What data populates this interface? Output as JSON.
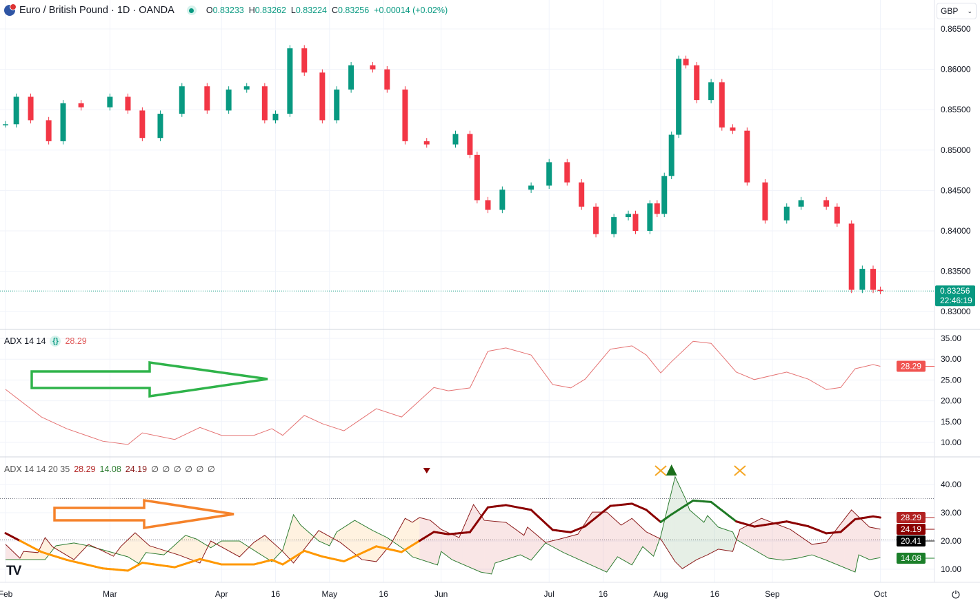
{
  "header": {
    "symbol_title": "Euro / British Pound · 1D · OANDA",
    "open_label": "O",
    "open": "0.83233",
    "high_label": "H",
    "high": "0.83262",
    "low_label": "L",
    "low": "0.83224",
    "close_label": "C",
    "close": "0.83256",
    "change": "+0.00014 (+0.02%)"
  },
  "currency_selector": "GBP",
  "colors": {
    "up": "#089981",
    "down": "#f23645",
    "adx_line": "#e57373",
    "di_plus": "#2e7d32",
    "di_minus": "#8b1a1a",
    "adx_weak": "#ff9800",
    "annotation_green": "#2fb34a",
    "annotation_orange": "#f5822a"
  },
  "x_axis": {
    "ticks": [
      {
        "date": "02-01",
        "label": "Feb"
      },
      {
        "date": "03-01",
        "label": "Mar"
      },
      {
        "date": "04-01",
        "label": "Apr"
      },
      {
        "date": "04-16",
        "label": "16"
      },
      {
        "date": "05-01",
        "label": "May"
      },
      {
        "date": "05-16",
        "label": "16"
      },
      {
        "date": "06-01",
        "label": "Jun"
      },
      {
        "date": "07-01",
        "label": "Jul"
      },
      {
        "date": "07-16",
        "label": "16"
      },
      {
        "date": "08-01",
        "label": "Aug"
      },
      {
        "date": "08-16",
        "label": "16"
      },
      {
        "date": "09-01",
        "label": "Sep"
      },
      {
        "date": "10-01",
        "label": "Oct"
      }
    ]
  },
  "chart_data": [
    {
      "type": "candlestick",
      "pane": "price",
      "y_ticks": [
        "0.86500",
        "0.86000",
        "0.85500",
        "0.85000",
        "0.84500",
        "0.84000",
        "0.83500",
        "0.83000"
      ],
      "ylim": [
        0.83,
        0.865
      ],
      "last_price_label": "0.83256",
      "countdown_label": "22:46:19",
      "last_price": 0.83256,
      "dates": [
        "02-01",
        "02-04",
        "02-08",
        "02-13",
        "02-17",
        "02-22",
        "03-01",
        "03-06",
        "03-10",
        "03-15",
        "03-21",
        "03-28",
        "04-03",
        "04-08",
        "04-13",
        "04-16",
        "04-20",
        "04-24",
        "04-29",
        "05-03",
        "05-07",
        "05-13",
        "05-17",
        "05-22",
        "05-28",
        "06-05",
        "06-09",
        "06-11",
        "06-14",
        "06-18",
        "06-26",
        "07-01",
        "07-06",
        "07-10",
        "07-14",
        "07-19",
        "07-23",
        "07-25",
        "07-29",
        "07-31",
        "08-02",
        "08-04",
        "08-06",
        "08-08",
        "08-11",
        "08-15",
        "08-18",
        "08-21",
        "08-25",
        "08-30",
        "09-05",
        "09-09",
        "09-16",
        "09-19",
        "09-23",
        "09-26",
        "09-29",
        "10-01"
      ],
      "close": [
        0.8532,
        0.8566,
        0.8537,
        0.8511,
        0.8558,
        0.8553,
        0.8566,
        0.8549,
        0.8515,
        0.8545,
        0.8579,
        0.8549,
        0.8575,
        0.8579,
        0.8537,
        0.8545,
        0.8626,
        0.8596,
        0.8537,
        0.8575,
        0.8605,
        0.86,
        0.8575,
        0.8511,
        0.8507,
        0.852,
        0.8494,
        0.8438,
        0.8426,
        0.8451,
        0.8456,
        0.8485,
        0.846,
        0.843,
        0.8396,
        0.8417,
        0.8421,
        0.84,
        0.8434,
        0.8421,
        0.8468,
        0.8519,
        0.8613,
        0.8605,
        0.8562,
        0.8584,
        0.8528,
        0.8524,
        0.846,
        0.8413,
        0.843,
        0.8438,
        0.843,
        0.8409,
        0.8327,
        0.8353,
        0.8327,
        0.83256
      ]
    },
    {
      "type": "line",
      "pane": "adx",
      "legend": {
        "title": "ADX 14 14",
        "value": "28.29"
      },
      "y_ticks": [
        "35.00",
        "30.00",
        "25.00",
        "20.00",
        "15.00",
        "10.00"
      ],
      "ylim": [
        10,
        35
      ],
      "last_value_label": "28.29",
      "dates": [
        "02-01",
        "02-11",
        "02-18",
        "02-28",
        "03-06",
        "03-10",
        "03-19",
        "03-26",
        "04-01",
        "04-10",
        "04-15",
        "04-18",
        "04-24",
        "04-29",
        "05-05",
        "05-14",
        "05-21",
        "05-30",
        "06-03",
        "06-09",
        "06-14",
        "06-19",
        "06-26",
        "07-02",
        "07-07",
        "07-11",
        "07-18",
        "07-24",
        "07-28",
        "08-01",
        "08-04",
        "08-10",
        "08-15",
        "08-22",
        "08-27",
        "09-05",
        "09-11",
        "09-16",
        "09-20",
        "09-24",
        "09-29",
        "10-01"
      ],
      "adx": [
        22.75,
        16.1,
        13.3,
        10.3,
        9.5,
        12.3,
        10.7,
        13.6,
        11.7,
        11.7,
        13.3,
        11.7,
        16.5,
        14.5,
        12.8,
        18.1,
        16.1,
        23.2,
        22.4,
        23.1,
        31.9,
        32.7,
        31.0,
        23.9,
        23.1,
        25.2,
        32.4,
        33.2,
        31.0,
        26.7,
        29.4,
        34.3,
        33.8,
        26.9,
        25.1,
        26.9,
        25.2,
        22.7,
        23.2,
        27.7,
        28.7,
        28.29
      ]
    },
    {
      "type": "line",
      "pane": "dmi",
      "legend": {
        "title": "ADX 14 14 20 35",
        "adx": "28.29",
        "di_plus": "14.08",
        "di_minus": "24.19",
        "empty_values": "∅ ∅ ∅ ∅ ∅ ∅"
      },
      "y_ticks": [
        "40.00",
        "30.00",
        "20.00",
        "10.00"
      ],
      "ylim": [
        10,
        40
      ],
      "threshold_low": 20,
      "threshold_high": 35,
      "level_label": "20.41",
      "labels": {
        "adx": "28.29",
        "di_minus": "24.19",
        "level": "20.41",
        "di_plus": "14.08"
      },
      "di_plus": {
        "dates": [
          "02-01",
          "02-12",
          "02-15",
          "02-20",
          "02-24",
          "03-06",
          "03-09",
          "03-11",
          "03-16",
          "03-22",
          "03-25",
          "03-29",
          "04-01",
          "04-06",
          "04-11",
          "04-15",
          "04-18",
          "04-21",
          "04-23",
          "04-28",
          "05-01",
          "05-03",
          "05-08",
          "05-13",
          "05-17",
          "05-22",
          "05-24",
          "05-31",
          "06-01",
          "06-04",
          "06-12",
          "06-15",
          "06-16",
          "06-23",
          "06-26",
          "06-30",
          "07-05",
          "07-17",
          "07-20",
          "07-24",
          "07-27",
          "07-30",
          "08-01",
          "08-05",
          "08-08",
          "08-09",
          "08-13",
          "08-14",
          "08-17",
          "08-21",
          "08-22",
          "08-31",
          "09-04",
          "09-08",
          "09-12",
          "09-16",
          "09-24",
          "09-25",
          "09-28",
          "10-01"
        ],
        "values": [
          13.4,
          13.4,
          18.3,
          19.3,
          18.3,
          14.4,
          12.0,
          15.9,
          15.1,
          22.0,
          20.7,
          17.6,
          20.0,
          20.0,
          15.9,
          12.7,
          16.8,
          29.3,
          25.6,
          20.0,
          18.3,
          23.2,
          27.3,
          23.7,
          21.2,
          16.8,
          14.4,
          11.5,
          16.3,
          13.4,
          9.0,
          8.3,
          12.2,
          15.1,
          13.2,
          19.3,
          15.9,
          9.0,
          14.4,
          11.5,
          18.0,
          14.6,
          21.7,
          42.7,
          34.6,
          31.0,
          26.6,
          29.0,
          24.9,
          23.2,
          20.5,
          13.9,
          13.2,
          13.9,
          15.1,
          13.2,
          9.0,
          15.1,
          13.4,
          14.08
        ]
      },
      "di_minus": {
        "dates": [
          "02-01",
          "02-05",
          "02-06",
          "02-10",
          "02-12",
          "02-14",
          "02-20",
          "02-24",
          "02-27",
          "03-02",
          "03-04",
          "03-08",
          "03-12",
          "03-17",
          "03-20",
          "03-26",
          "03-29",
          "04-06",
          "04-10",
          "04-13",
          "04-18",
          "04-21",
          "04-28",
          "05-04",
          "05-10",
          "05-14",
          "05-18",
          "05-22",
          "05-24",
          "05-26",
          "05-29",
          "06-01",
          "06-06",
          "06-10",
          "06-13",
          "06-19",
          "06-24",
          "06-25",
          "06-30",
          "07-04",
          "07-09",
          "07-13",
          "07-17",
          "07-21",
          "07-24",
          "07-28",
          "08-01",
          "08-05",
          "08-07",
          "08-11",
          "08-14",
          "08-17",
          "08-21",
          "08-23",
          "08-29",
          "09-06",
          "09-12",
          "09-16",
          "09-23",
          "09-25",
          "09-28",
          "10-01"
        ],
        "values": [
          18.8,
          13.9,
          16.3,
          15.9,
          21.2,
          18.0,
          13.4,
          18.8,
          17.1,
          14.6,
          18.0,
          22.9,
          18.3,
          16.3,
          15.1,
          12.2,
          20.0,
          14.4,
          19.5,
          22.0,
          16.3,
          12.2,
          23.7,
          19.5,
          13.4,
          12.7,
          18.8,
          28.0,
          26.6,
          28.3,
          27.3,
          24.1,
          21.2,
          32.9,
          27.3,
          26.6,
          22.0,
          24.9,
          19.5,
          20.7,
          22.4,
          30.2,
          30.2,
          25.6,
          28.0,
          23.2,
          20.7,
          12.7,
          10.2,
          13.4,
          15.1,
          17.1,
          16.3,
          24.1,
          28.0,
          24.1,
          18.8,
          19.5,
          31.0,
          28.5,
          24.9,
          24.19
        ]
      },
      "signals": [
        {
          "date": "05-28",
          "type": "triangle-down",
          "color": "#8b0000"
        },
        {
          "date": "08-01",
          "type": "cross",
          "color": "#f5a623"
        },
        {
          "date": "08-04",
          "type": "triangle-up",
          "color": "#1b6e1b"
        },
        {
          "date": "08-23",
          "type": "cross",
          "color": "#f5a623"
        }
      ]
    }
  ]
}
